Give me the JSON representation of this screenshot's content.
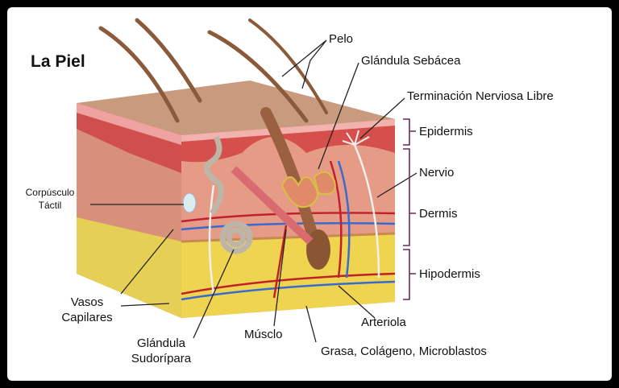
{
  "title": "La Piel",
  "labels": {
    "pelo": "Pelo",
    "glandula_sebacea": "Glándula Sebácea",
    "terminacion": "Terminación Nerviosa Libre",
    "epidermis": "Epidermis",
    "nervio": "Nervio",
    "dermis": "Dermis",
    "hipodermis": "Hipodermis",
    "corpusculo": [
      "Corpúsculo",
      "Táctil"
    ],
    "vasos": [
      "Vasos",
      "Capilares"
    ],
    "sudoripara": [
      "Glándula",
      "Sudorípara"
    ],
    "musculo": "Músclo",
    "arteriola": "Arteriola",
    "grasa": "Grasa, Colágeno, Microblastos"
  }
}
